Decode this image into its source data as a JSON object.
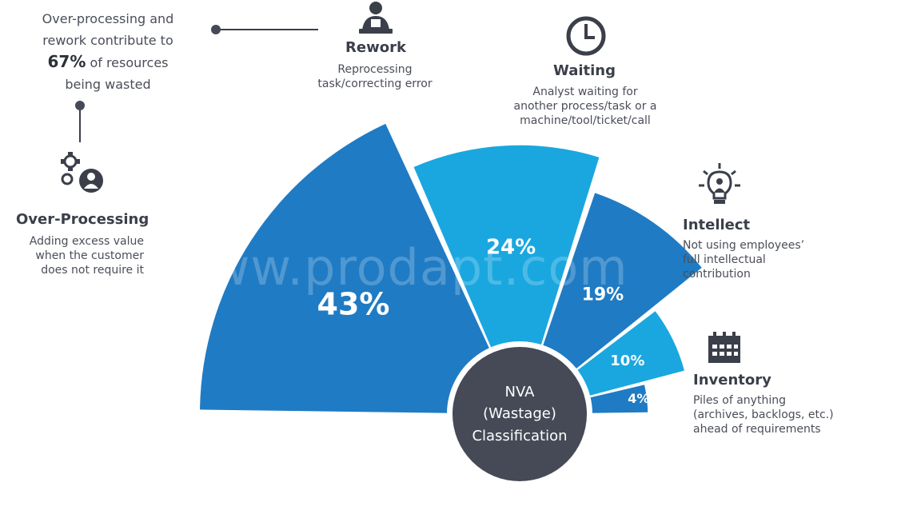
{
  "watermark": "www.prodapt.com",
  "callout": {
    "line1": "Over-processing and",
    "line2": "rework contribute to",
    "pct": "67%",
    "line3_rest": " of resources",
    "line4": "being wasted"
  },
  "center": {
    "line1": "NVA",
    "line2": "(Wastage)",
    "line3": "Classification"
  },
  "items": [
    {
      "key": "over",
      "title": "Over-Processing",
      "desc": [
        "Adding excess value",
        "when the customer",
        "does not require it"
      ],
      "icon": "gears-person-icon"
    },
    {
      "key": "rework",
      "title": "Rework",
      "desc": [
        "Reprocessing",
        "task/correcting error"
      ],
      "icon": "person-at-desk-icon"
    },
    {
      "key": "waiting",
      "title": "Waiting",
      "desc": [
        "Analyst waiting for",
        "another process/task or a",
        "machine/tool/ticket/call"
      ],
      "icon": "clock-icon"
    },
    {
      "key": "intellect",
      "title": "Intellect",
      "desc": [
        "Not using employees’",
        "full intellectual",
        "contribution"
      ],
      "icon": "lightbulb-person-icon"
    },
    {
      "key": "inventory",
      "title": "Inventory",
      "desc": [
        "Piles of anything",
        "(archives, backlogs, etc.)",
        "ahead of requirements"
      ],
      "icon": "calendar-icon"
    }
  ],
  "chart_data": {
    "type": "pie",
    "title": "NVA (Wastage) Classification",
    "categories": [
      "Over-Processing",
      "Rework",
      "Waiting",
      "Intellect",
      "Inventory"
    ],
    "values": [
      43,
      24,
      19,
      10,
      4
    ],
    "labels": [
      "43%",
      "24%",
      "19%",
      "10%",
      "4%"
    ],
    "colors": [
      "#1f7bc4",
      "#1aa7df",
      "#1f7bc4",
      "#1aa7df",
      "#1f7bc4"
    ],
    "center_color": "#454a56"
  }
}
